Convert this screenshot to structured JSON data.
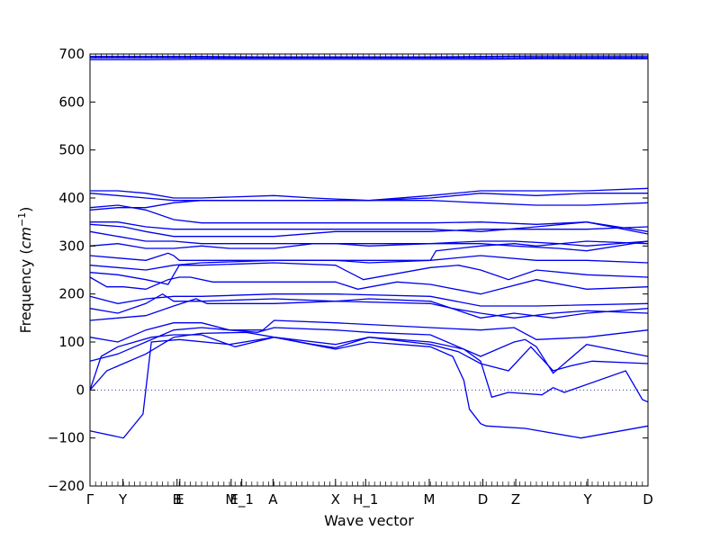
{
  "chart_data": {
    "type": "line",
    "title": "",
    "xlabel": "Wave vector",
    "ylabel_main": "Frequency (",
    "ylabel_unit": "cm",
    "ylabel_exp": "−1",
    "ylabel_close": ")",
    "ylim": [
      -200,
      700
    ],
    "xlim": [
      0,
      100
    ],
    "yticks": [
      -200,
      -100,
      0,
      100,
      200,
      300,
      400,
      500,
      600,
      700
    ],
    "zero_line": true,
    "line_color": "#0000ee",
    "xticks": [
      {
        "label": "Γ",
        "x": 0
      },
      {
        "label": "Y",
        "x": 5.9
      },
      {
        "label": "B",
        "x": 15.6
      },
      {
        "label": "E",
        "x": 16.1
      },
      {
        "label": "M",
        "x": 25.3
      },
      {
        "label": "E_1",
        "x": 27.2
      },
      {
        "label": "A",
        "x": 32.8
      },
      {
        "label": "X",
        "x": 44.0
      },
      {
        "label": "H_1",
        "x": 49.4
      },
      {
        "label": "M",
        "x": 60.8
      },
      {
        "label": "D",
        "x": 70.4
      },
      {
        "label": "Z",
        "x": 76.3
      },
      {
        "label": "Y",
        "x": 89.2
      },
      {
        "label": "D",
        "x": 100
      }
    ],
    "series": [
      {
        "x": [
          0,
          6,
          9.5,
          11,
          16,
          25,
          33,
          44,
          50,
          61,
          65,
          67,
          68,
          70,
          71,
          78,
          88,
          100
        ],
        "y": [
          -85,
          -100,
          -50,
          100,
          105,
          95,
          110,
          85,
          100,
          90,
          70,
          20,
          -40,
          -70,
          -75,
          -80,
          -100,
          -75
        ]
      },
      {
        "x": [
          0,
          2,
          5,
          8,
          11,
          15,
          20,
          26,
          33,
          40,
          44,
          50,
          61,
          66,
          70,
          75,
          79,
          83,
          86,
          90,
          100
        ],
        "y": [
          0,
          70,
          90,
          100,
          110,
          115,
          115,
          90,
          110,
          95,
          88,
          110,
          95,
          80,
          55,
          40,
          90,
          40,
          50,
          60,
          55
        ]
      },
      {
        "x": [
          0,
          3,
          6,
          10,
          15,
          20,
          28,
          33,
          44,
          50,
          61,
          67,
          70,
          72,
          75,
          81,
          83,
          85,
          96,
          99,
          100
        ],
        "y": [
          0,
          40,
          55,
          75,
          110,
          118,
          120,
          110,
          95,
          110,
          100,
          85,
          60,
          -15,
          -5,
          -10,
          5,
          -5,
          40,
          -20,
          -25
        ]
      },
      {
        "x": [
          0,
          5,
          10,
          15,
          20,
          25,
          30,
          33,
          44,
          50,
          61,
          70,
          76,
          78,
          80,
          83,
          89,
          100
        ],
        "y": [
          60,
          75,
          100,
          125,
          130,
          125,
          120,
          130,
          125,
          120,
          115,
          70,
          100,
          105,
          90,
          35,
          95,
          70
        ]
      },
      {
        "x": [
          0,
          5,
          10,
          15,
          20,
          25,
          31,
          33,
          44,
          61,
          70,
          76,
          80,
          89,
          100
        ],
        "y": [
          110,
          100,
          125,
          140,
          140,
          125,
          125,
          145,
          140,
          130,
          125,
          130,
          105,
          110,
          125
        ]
      },
      {
        "x": [
          0,
          5,
          10,
          15,
          19,
          21,
          33,
          44,
          50,
          61,
          70,
          76,
          83,
          89,
          100
        ],
        "y": [
          145,
          150,
          155,
          175,
          190,
          180,
          180,
          185,
          190,
          185,
          150,
          160,
          150,
          160,
          170
        ]
      },
      {
        "x": [
          0,
          5,
          10,
          13,
          15,
          20,
          33,
          44,
          61,
          65,
          70,
          76,
          83,
          89,
          100
        ],
        "y": [
          170,
          160,
          180,
          200,
          185,
          185,
          190,
          185,
          180,
          170,
          160,
          150,
          160,
          165,
          160
        ]
      },
      {
        "x": [
          0,
          5,
          10,
          15,
          20,
          33,
          44,
          61,
          70,
          80,
          100
        ],
        "y": [
          195,
          180,
          190,
          195,
          195,
          200,
          200,
          195,
          175,
          175,
          180
        ]
      },
      {
        "x": [
          0,
          3,
          6,
          10,
          14,
          16,
          18,
          22,
          33,
          44,
          48,
          55,
          61,
          70,
          80,
          89,
          100
        ],
        "y": [
          235,
          215,
          215,
          210,
          230,
          235,
          235,
          225,
          225,
          225,
          210,
          225,
          220,
          200,
          230,
          210,
          215
        ]
      },
      {
        "x": [
          0,
          5,
          10,
          14,
          15,
          16,
          20,
          33,
          44,
          49,
          61,
          66,
          70,
          75,
          80,
          89,
          100
        ],
        "y": [
          245,
          240,
          230,
          220,
          240,
          260,
          260,
          265,
          260,
          230,
          255,
          260,
          250,
          230,
          250,
          240,
          235
        ]
      },
      {
        "x": [
          0,
          5,
          10,
          15,
          20,
          33,
          44,
          50,
          61,
          70,
          80,
          89,
          100
        ],
        "y": [
          260,
          255,
          250,
          260,
          265,
          270,
          270,
          265,
          270,
          280,
          270,
          270,
          265
        ]
      },
      {
        "x": [
          0,
          5,
          10,
          14,
          15,
          16,
          20,
          30,
          44,
          61,
          62,
          70,
          76,
          80,
          89,
          100
        ],
        "y": [
          280,
          275,
          270,
          285,
          280,
          270,
          270,
          270,
          270,
          270,
          290,
          300,
          305,
          300,
          310,
          305
        ]
      },
      {
        "x": [
          0,
          5,
          10,
          15,
          20,
          25,
          33,
          40,
          44,
          50,
          61,
          70,
          76,
          84,
          89,
          100
        ],
        "y": [
          300,
          305,
          295,
          295,
          300,
          295,
          295,
          305,
          305,
          300,
          305,
          305,
          300,
          295,
          290,
          310
        ]
      },
      {
        "x": [
          0,
          5,
          10,
          15,
          20,
          30,
          40,
          44,
          50,
          61,
          70,
          76,
          84,
          89,
          100
        ],
        "y": [
          330,
          320,
          310,
          310,
          305,
          305,
          305,
          305,
          305,
          305,
          310,
          310,
          305,
          300,
          310
        ]
      },
      {
        "x": [
          0,
          6,
          10,
          15,
          20,
          28,
          33,
          44,
          50,
          61,
          70,
          76,
          89,
          100
        ],
        "y": [
          345,
          340,
          330,
          320,
          320,
          320,
          320,
          330,
          330,
          330,
          335,
          335,
          335,
          340
        ]
      },
      {
        "x": [
          0,
          5,
          10,
          15,
          20,
          30,
          40,
          50,
          61,
          70,
          80,
          89,
          100
        ],
        "y": [
          350,
          350,
          340,
          335,
          335,
          335,
          335,
          335,
          335,
          330,
          340,
          350,
          325
        ]
      },
      {
        "x": [
          0,
          5,
          10,
          15,
          20,
          28,
          33,
          44,
          61,
          70,
          80,
          89,
          100
        ],
        "y": [
          380,
          385,
          375,
          355,
          348,
          348,
          348,
          348,
          348,
          350,
          345,
          350,
          330
        ]
      },
      {
        "x": [
          0,
          5,
          10,
          15,
          20,
          30,
          40,
          50,
          61,
          70,
          80,
          89,
          100
        ],
        "y": [
          375,
          380,
          380,
          390,
          395,
          395,
          395,
          395,
          395,
          390,
          385,
          385,
          390
        ]
      },
      {
        "x": [
          0,
          5,
          10,
          15,
          20,
          30,
          40,
          50,
          61,
          70,
          80,
          89,
          100
        ],
        "y": [
          410,
          405,
          400,
          395,
          395,
          395,
          395,
          395,
          400,
          410,
          405,
          410,
          410
        ]
      },
      {
        "x": [
          0,
          5,
          10,
          15,
          20,
          33,
          40,
          50,
          61,
          70,
          80,
          89,
          100
        ],
        "y": [
          415,
          415,
          410,
          400,
          400,
          405,
          400,
          395,
          405,
          415,
          415,
          415,
          420
        ]
      },
      {
        "x": [
          0,
          10,
          20,
          30,
          40,
          50,
          60,
          70,
          80,
          90,
          100
        ],
        "y": [
          688,
          688,
          689,
          689,
          689,
          689,
          689,
          689,
          690,
          690,
          690
        ]
      },
      {
        "x": [
          0,
          10,
          20,
          30,
          40,
          50,
          60,
          70,
          80,
          90,
          100
        ],
        "y": [
          692,
          692,
          692,
          692,
          692,
          692,
          692,
          692,
          693,
          693,
          693
        ]
      },
      {
        "x": [
          0,
          10,
          20,
          30,
          40,
          50,
          60,
          70,
          80,
          90,
          100
        ],
        "y": [
          695,
          695,
          695,
          694,
          694,
          694,
          694,
          695,
          696,
          696,
          696
        ]
      }
    ]
  }
}
